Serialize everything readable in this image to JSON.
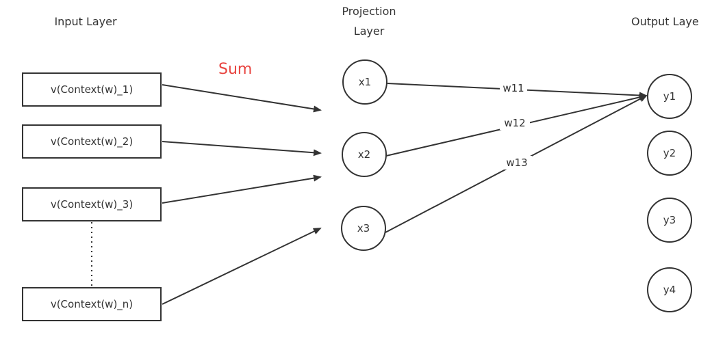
{
  "layers": {
    "input": "Input Layer",
    "projection_line1": "Projection",
    "projection_line2": "Layer",
    "output": "Output Laye"
  },
  "sum_label": "Sum",
  "input_boxes": [
    "v(Context(w)_1)",
    "v(Context(w)_2)",
    "v(Context(w)_3)",
    "v(Context(w)_n)"
  ],
  "projection_nodes": [
    "x1",
    "x2",
    "x3"
  ],
  "output_nodes": [
    "y1",
    "y2",
    "y3",
    "y4"
  ],
  "weights": [
    "w11",
    "w12",
    "w13"
  ],
  "colors": {
    "line": "#333333",
    "sum": "#e8433f"
  }
}
